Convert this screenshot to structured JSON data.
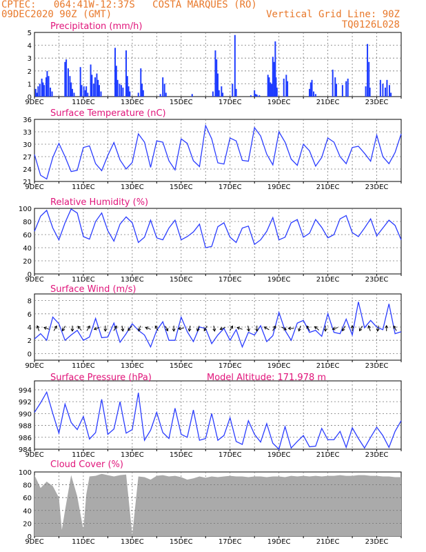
{
  "header": {
    "line1": "CPTEC:   064:41W-12:37S   COSTA MARQUES (RO)",
    "line2": "09DEC2020 90Z (GMT)",
    "grid_note": "Vertical Grid Line: 90Z",
    "model_code": "TQ0126L028"
  },
  "x_ticks": [
    "9DEC",
    "11DEC",
    "13DEC",
    "15DEC",
    "17DEC",
    "19DEC",
    "21DEC",
    "23DEC"
  ],
  "chart_data": [
    {
      "type": "bar",
      "title": "Precipitation (mm/h)",
      "ylim": [
        0,
        5
      ],
      "yticks": [
        0,
        1,
        2,
        3,
        4,
        5
      ],
      "color": "#1e3cff",
      "x_range_days": [
        0,
        15
      ],
      "events": [
        [
          0.05,
          0.6
        ],
        [
          0.1,
          0.3
        ],
        [
          0.15,
          0.8
        ],
        [
          0.22,
          1.0
        ],
        [
          0.3,
          1.4
        ],
        [
          0.35,
          1.1
        ],
        [
          0.4,
          0.9
        ],
        [
          0.48,
          1.5
        ],
        [
          0.52,
          2.0
        ],
        [
          0.58,
          1.6
        ],
        [
          0.65,
          0.7
        ],
        [
          0.72,
          0.4
        ],
        [
          1.25,
          2.7
        ],
        [
          1.3,
          2.9
        ],
        [
          1.38,
          2.2
        ],
        [
          1.45,
          1.6
        ],
        [
          1.5,
          1.1
        ],
        [
          1.55,
          0.6
        ],
        [
          1.62,
          0.3
        ],
        [
          1.88,
          2.3
        ],
        [
          1.93,
          0.9
        ],
        [
          2.02,
          0.8
        ],
        [
          2.08,
          0.5
        ],
        [
          2.12,
          0.8
        ],
        [
          2.18,
          0.3
        ],
        [
          2.3,
          2.5
        ],
        [
          2.35,
          1.7
        ],
        [
          2.42,
          1.0
        ],
        [
          2.48,
          1.5
        ],
        [
          2.55,
          1.8
        ],
        [
          2.6,
          1.3
        ],
        [
          2.65,
          0.9
        ],
        [
          2.72,
          0.4
        ],
        [
          3.3,
          3.8
        ],
        [
          3.35,
          2.4
        ],
        [
          3.4,
          1.3
        ],
        [
          3.48,
          1.0
        ],
        [
          3.55,
          0.9
        ],
        [
          3.62,
          0.7
        ],
        [
          3.75,
          3.6
        ],
        [
          3.8,
          1.6
        ],
        [
          3.85,
          0.8
        ],
        [
          3.9,
          0.4
        ],
        [
          4.25,
          0.3
        ],
        [
          4.35,
          2.2
        ],
        [
          4.4,
          1.0
        ],
        [
          4.45,
          0.5
        ],
        [
          5.15,
          0.2
        ],
        [
          5.25,
          1.5
        ],
        [
          5.32,
          1.0
        ],
        [
          5.38,
          0.3
        ],
        [
          6.45,
          0.2
        ],
        [
          7.3,
          0.4
        ],
        [
          7.4,
          3.6
        ],
        [
          7.45,
          2.9
        ],
        [
          7.5,
          1.8
        ],
        [
          7.55,
          0.5
        ],
        [
          7.65,
          0.8
        ],
        [
          7.7,
          0.3
        ],
        [
          8.1,
          1.0
        ],
        [
          8.2,
          4.8
        ],
        [
          8.25,
          0.6
        ],
        [
          8.85,
          0.1
        ],
        [
          9.0,
          0.5
        ],
        [
          9.05,
          0.2
        ],
        [
          9.1,
          0.15
        ],
        [
          9.2,
          0.1
        ],
        [
          9.55,
          1.7
        ],
        [
          9.6,
          1.5
        ],
        [
          9.65,
          1.1
        ],
        [
          9.7,
          1.0
        ],
        [
          9.75,
          3.1
        ],
        [
          9.8,
          2.7
        ],
        [
          9.85,
          4.3
        ],
        [
          9.88,
          1.5
        ],
        [
          9.92,
          0.7
        ],
        [
          10.2,
          1.4
        ],
        [
          10.3,
          1.7
        ],
        [
          10.35,
          1.2
        ],
        [
          11.25,
          0.6
        ],
        [
          11.3,
          1.1
        ],
        [
          11.35,
          1.3
        ],
        [
          11.42,
          0.4
        ],
        [
          11.5,
          0.2
        ],
        [
          12.2,
          2.1
        ],
        [
          12.3,
          1.5
        ],
        [
          12.35,
          1.0
        ],
        [
          12.6,
          0.9
        ],
        [
          12.75,
          1.2
        ],
        [
          12.82,
          1.4
        ],
        [
          13.55,
          0.8
        ],
        [
          13.62,
          4.1
        ],
        [
          13.68,
          2.7
        ],
        [
          13.72,
          0.7
        ],
        [
          14.15,
          1.3
        ],
        [
          14.25,
          1.0
        ],
        [
          14.35,
          0.7
        ],
        [
          14.42,
          1.3
        ],
        [
          14.52,
          0.9
        ],
        [
          14.58,
          0.3
        ]
      ]
    },
    {
      "type": "line",
      "title": "Surface Temperature (nC)",
      "ylim": [
        21,
        36
      ],
      "yticks": [
        21,
        24,
        27,
        30,
        33,
        36
      ],
      "color": "#2a3cff",
      "x": [
        0,
        0.25,
        0.5,
        0.75,
        1,
        1.25,
        1.5,
        1.75,
        2,
        2.25,
        2.5,
        2.75,
        3,
        3.25,
        3.5,
        3.75,
        4,
        4.25,
        4.5,
        4.75,
        5,
        5.25,
        5.5,
        5.75,
        6,
        6.25,
        6.5,
        6.75,
        7,
        7.25,
        7.5,
        7.75,
        8,
        8.25,
        8.5,
        8.75,
        9,
        9.25,
        9.5,
        9.75,
        10,
        10.25,
        10.5,
        10.75,
        11,
        11.25,
        11.5,
        11.75,
        12,
        12.25,
        12.5,
        12.75,
        13,
        13.25,
        13.5,
        13.75,
        14,
        14.25,
        14.5,
        14.75,
        15
      ],
      "values": [
        27.5,
        22.5,
        21.6,
        26.8,
        30.2,
        27.0,
        23.4,
        23.7,
        29.2,
        29.6,
        25.3,
        23.6,
        27.3,
        30.4,
        26.2,
        24.0,
        25.6,
        32.5,
        30.5,
        24.4,
        30.8,
        30.5,
        26.0,
        23.8,
        31.3,
        30.2,
        26.0,
        24.6,
        34.5,
        31.3,
        25.5,
        25.2,
        31.5,
        30.8,
        26.1,
        25.9,
        34.0,
        32.0,
        27.6,
        25.0,
        33.0,
        30.5,
        26.4,
        24.9,
        30.0,
        28.4,
        24.7,
        26.8,
        31.5,
        30.5,
        27.0,
        25.3,
        29.2,
        29.5,
        27.8,
        25.9,
        32.2,
        27.0,
        25.3,
        28.0,
        32.5
      ]
    },
    {
      "type": "line",
      "title": "Relative Humidity (%)",
      "ylim": [
        0,
        100
      ],
      "yticks": [
        0,
        20,
        40,
        60,
        80,
        100
      ],
      "color": "#2a3cff",
      "x": [
        0,
        0.25,
        0.5,
        0.75,
        1,
        1.25,
        1.5,
        1.75,
        2,
        2.25,
        2.5,
        2.75,
        3,
        3.25,
        3.5,
        3.75,
        4,
        4.25,
        4.5,
        4.75,
        5,
        5.25,
        5.5,
        5.75,
        6,
        6.25,
        6.5,
        6.75,
        7,
        7.25,
        7.5,
        7.75,
        8,
        8.25,
        8.5,
        8.75,
        9,
        9.25,
        9.5,
        9.75,
        10,
        10.25,
        10.5,
        10.75,
        11,
        11.25,
        11.5,
        11.75,
        12,
        12.25,
        12.5,
        12.75,
        13,
        13.25,
        13.5,
        13.75,
        14,
        14.25,
        14.5,
        14.75,
        15
      ],
      "values": [
        65,
        88,
        97,
        70,
        52,
        78,
        99,
        93,
        57,
        53,
        80,
        93,
        66,
        50,
        76,
        87,
        78,
        48,
        56,
        82,
        55,
        52,
        70,
        82,
        52,
        57,
        64,
        76,
        40,
        42,
        72,
        78,
        56,
        48,
        70,
        73,
        45,
        52,
        65,
        86,
        52,
        56,
        78,
        83,
        56,
        62,
        83,
        71,
        55,
        60,
        84,
        89,
        63,
        57,
        70,
        84,
        58,
        70,
        82,
        74,
        52
      ]
    },
    {
      "type": "line",
      "title": "Surface Wind (m/s)",
      "ylim": [
        -1,
        9
      ],
      "yticks": [
        0,
        2,
        4,
        6,
        8
      ],
      "color": "#2a3cff",
      "x": [
        0,
        0.25,
        0.5,
        0.75,
        1,
        1.25,
        1.5,
        1.75,
        2,
        2.25,
        2.5,
        2.75,
        3,
        3.25,
        3.5,
        3.75,
        4,
        4.25,
        4.5,
        4.75,
        5,
        5.25,
        5.5,
        5.75,
        6,
        6.25,
        6.5,
        6.75,
        7,
        7.25,
        7.5,
        7.75,
        8,
        8.25,
        8.5,
        8.75,
        9,
        9.25,
        9.5,
        9.75,
        10,
        10.25,
        10.5,
        10.75,
        11,
        11.25,
        11.5,
        11.75,
        12,
        12.25,
        12.5,
        12.75,
        13,
        13.25,
        13.5,
        13.75,
        14,
        14.25,
        14.5,
        14.75,
        15
      ],
      "values": [
        2.2,
        3.0,
        2.0,
        5.5,
        4.5,
        2.0,
        2.8,
        3.5,
        2.0,
        2.5,
        5.3,
        2.4,
        2.5,
        4.6,
        1.7,
        3.0,
        4.5,
        3.5,
        2.8,
        1.0,
        3.5,
        4.8,
        2.0,
        2.0,
        5.5,
        3.3,
        1.8,
        4.0,
        3.8,
        1.5,
        2.8,
        3.8,
        2.0,
        3.6,
        1.0,
        3.2,
        2.8,
        4.2,
        1.8,
        2.7,
        6.2,
        3.5,
        2.0,
        4.6,
        5.0,
        3.2,
        3.5,
        2.6,
        6.0,
        3.2,
        3.0,
        5.2,
        2.8,
        7.8,
        3.9,
        5.0,
        4.0,
        3.6,
        7.5,
        3.0,
        3.3
      ],
      "arrow_days": [
        0.15,
        0.5,
        0.85,
        1.2,
        1.55,
        1.85,
        2.2,
        2.55,
        2.9,
        3.3,
        3.6,
        3.9,
        4.3,
        4.65,
        5.0,
        5.4,
        5.7,
        6.0,
        6.35,
        6.7,
        7.0,
        7.35,
        7.7,
        8.05,
        8.4,
        8.75,
        9.1,
        9.5,
        9.8,
        10.2,
        10.5,
        10.85,
        11.2,
        11.55,
        11.9,
        12.3,
        12.65,
        13.0,
        13.35,
        13.7,
        14.05,
        14.4,
        14.75
      ],
      "arrow_deg": [
        250,
        200,
        300,
        120,
        90,
        230,
        300,
        160,
        90,
        300,
        80,
        130,
        110,
        200,
        240,
        60,
        90,
        170,
        100,
        110,
        120,
        80,
        160,
        300,
        200,
        80,
        90,
        210,
        300,
        30,
        180,
        110,
        240,
        220,
        90,
        160,
        120,
        270,
        120,
        250,
        100,
        270,
        240
      ]
    },
    {
      "type": "line",
      "title": "Surface Pressure (hPa)",
      "annotation": "Model Altitude: 171.978  m",
      "ylim": [
        984,
        995.5
      ],
      "yticks": [
        984,
        986,
        988,
        990,
        992,
        994
      ],
      "color": "#2a3cff",
      "x": [
        0,
        0.25,
        0.5,
        0.75,
        1,
        1.25,
        1.5,
        1.75,
        2,
        2.25,
        2.5,
        2.75,
        3,
        3.25,
        3.5,
        3.75,
        4,
        4.25,
        4.5,
        4.75,
        5,
        5.25,
        5.5,
        5.75,
        6,
        6.25,
        6.5,
        6.75,
        7,
        7.25,
        7.5,
        7.75,
        8,
        8.25,
        8.5,
        8.75,
        9,
        9.25,
        9.5,
        9.75,
        10,
        10.25,
        10.5,
        10.75,
        11,
        11.25,
        11.5,
        11.75,
        12,
        12.25,
        12.5,
        12.75,
        13,
        13.25,
        13.5,
        13.75,
        14,
        14.25,
        14.5,
        14.75,
        15
      ],
      "values": [
        990.2,
        991.8,
        993.6,
        990.0,
        986.7,
        991.6,
        988.5,
        987.3,
        989.5,
        985.7,
        986.8,
        992.4,
        986.5,
        987.4,
        992.0,
        986.7,
        987.3,
        993.5,
        985.5,
        987.2,
        990.2,
        986.8,
        985.8,
        990.9,
        986.5,
        986.0,
        990.6,
        985.5,
        985.8,
        990.0,
        985.5,
        986.3,
        989.3,
        985.3,
        984.8,
        988.8,
        986.5,
        985.2,
        988.3,
        985.0,
        984.0,
        987.8,
        984.2,
        985.3,
        986.3,
        984.4,
        984.5,
        987.5,
        985.6,
        985.6,
        987.0,
        984.3,
        987.6,
        985.8,
        984.2,
        986.0,
        987.7,
        986.3,
        984.3,
        987.0,
        988.8
      ]
    },
    {
      "type": "area",
      "title": "Cloud Cover (%)",
      "ylim": [
        0,
        100
      ],
      "yticks": [
        0,
        20,
        40,
        60,
        80,
        100
      ],
      "color": "#aaaaaa",
      "x": [
        0,
        0.25,
        0.5,
        0.75,
        1,
        1.12,
        1.25,
        1.5,
        1.75,
        2,
        2.12,
        2.25,
        2.5,
        2.75,
        3,
        3.25,
        3.5,
        3.75,
        4,
        4.25,
        4.5,
        4.75,
        5,
        5.25,
        5.5,
        5.75,
        6,
        6.25,
        6.5,
        6.75,
        7,
        7.25,
        7.5,
        7.75,
        8,
        8.25,
        8.5,
        8.75,
        9,
        9.25,
        9.5,
        9.75,
        10,
        10.25,
        10.5,
        10.75,
        11,
        11.25,
        11.5,
        11.75,
        12,
        12.25,
        12.5,
        12.75,
        13,
        13.25,
        13.5,
        13.75,
        14,
        14.25,
        14.5,
        14.75,
        15
      ],
      "values": [
        95,
        75,
        85,
        78,
        60,
        10,
        40,
        95,
        62,
        10,
        65,
        93,
        94,
        97,
        95,
        93,
        95,
        96,
        2,
        93,
        92,
        88,
        94,
        95,
        93,
        94,
        92,
        88,
        90,
        93,
        91,
        93,
        92,
        93,
        94,
        93,
        93,
        92,
        93,
        93,
        92,
        93,
        93,
        92,
        94,
        93,
        94,
        93,
        94,
        93,
        94,
        94,
        95,
        94,
        94,
        95,
        95,
        94,
        94,
        93,
        93,
        92,
        92
      ]
    }
  ]
}
